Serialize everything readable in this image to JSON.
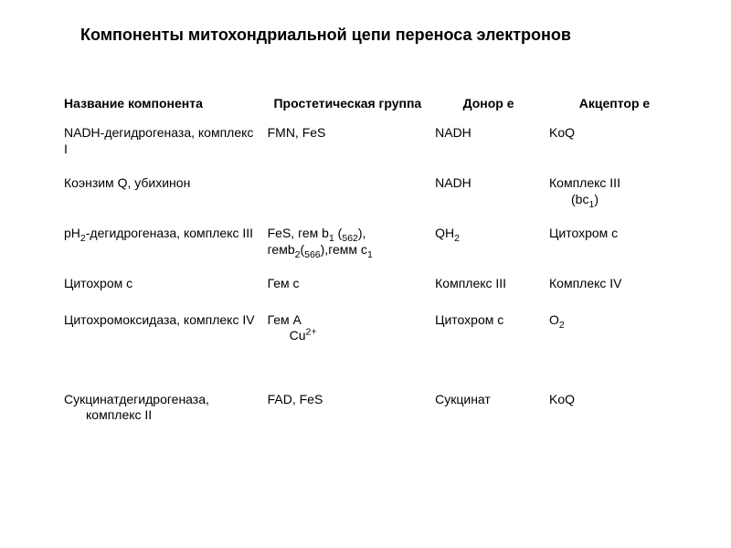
{
  "title": "Компоненты митохондриальной цепи переноса электронов",
  "columns": [
    "Название компонента",
    "Простетическая группа",
    "Донор е",
    "Акцептор е"
  ],
  "rows": [
    {
      "name": "NADH-дегидрогеназа, комплекс I",
      "group": "FMN, FeS",
      "donor": "NADH",
      "acceptor": "KoQ"
    },
    {
      "name": "Коэнзим Q, убихинон",
      "group": "",
      "donor": "NADH",
      "acceptor_html": "Комплекс III<span class=\"hang\">(bc<sub>1</sub>)</span>"
    },
    {
      "name_html": "pH<sub>2</sub>-дегидрогеназа, комплекс III",
      "group_html": "FeS, гем b<sub>1</sub> (<sub>562</sub>), гемb<sub>2</sub>(<sub>566</sub>),гемм с<sub>1</sub>",
      "donor_html": "QH<sub>2</sub>",
      "acceptor": "Цитохром с"
    },
    {
      "name": "Цитохром с",
      "group": "Гем с",
      "donor": "Комплекс III",
      "acceptor": "Комплекс IV",
      "pad_after": 16
    },
    {
      "name": "Цитохромоксидаза, комплекс IV",
      "group_html": "Гем А<span class=\"hang\">Cu<sup>2+</sup></span>",
      "donor": "Цитохром с",
      "acceptor_html": "O<sub>2</sub>",
      "pad_after": 46
    },
    {
      "name_html": "Сукцинатдегидрогеназа,<span class=\"hang\">комплекс II</span>",
      "group": "FAD, FeS",
      "donor": "Сукцинат",
      "acceptor": "KoQ"
    }
  ],
  "style": {
    "background": "#ffffff",
    "text_color": "#000000",
    "title_fontsize": 18,
    "header_fontsize": 14,
    "cell_fontsize": 14,
    "font_family": "Arial"
  }
}
